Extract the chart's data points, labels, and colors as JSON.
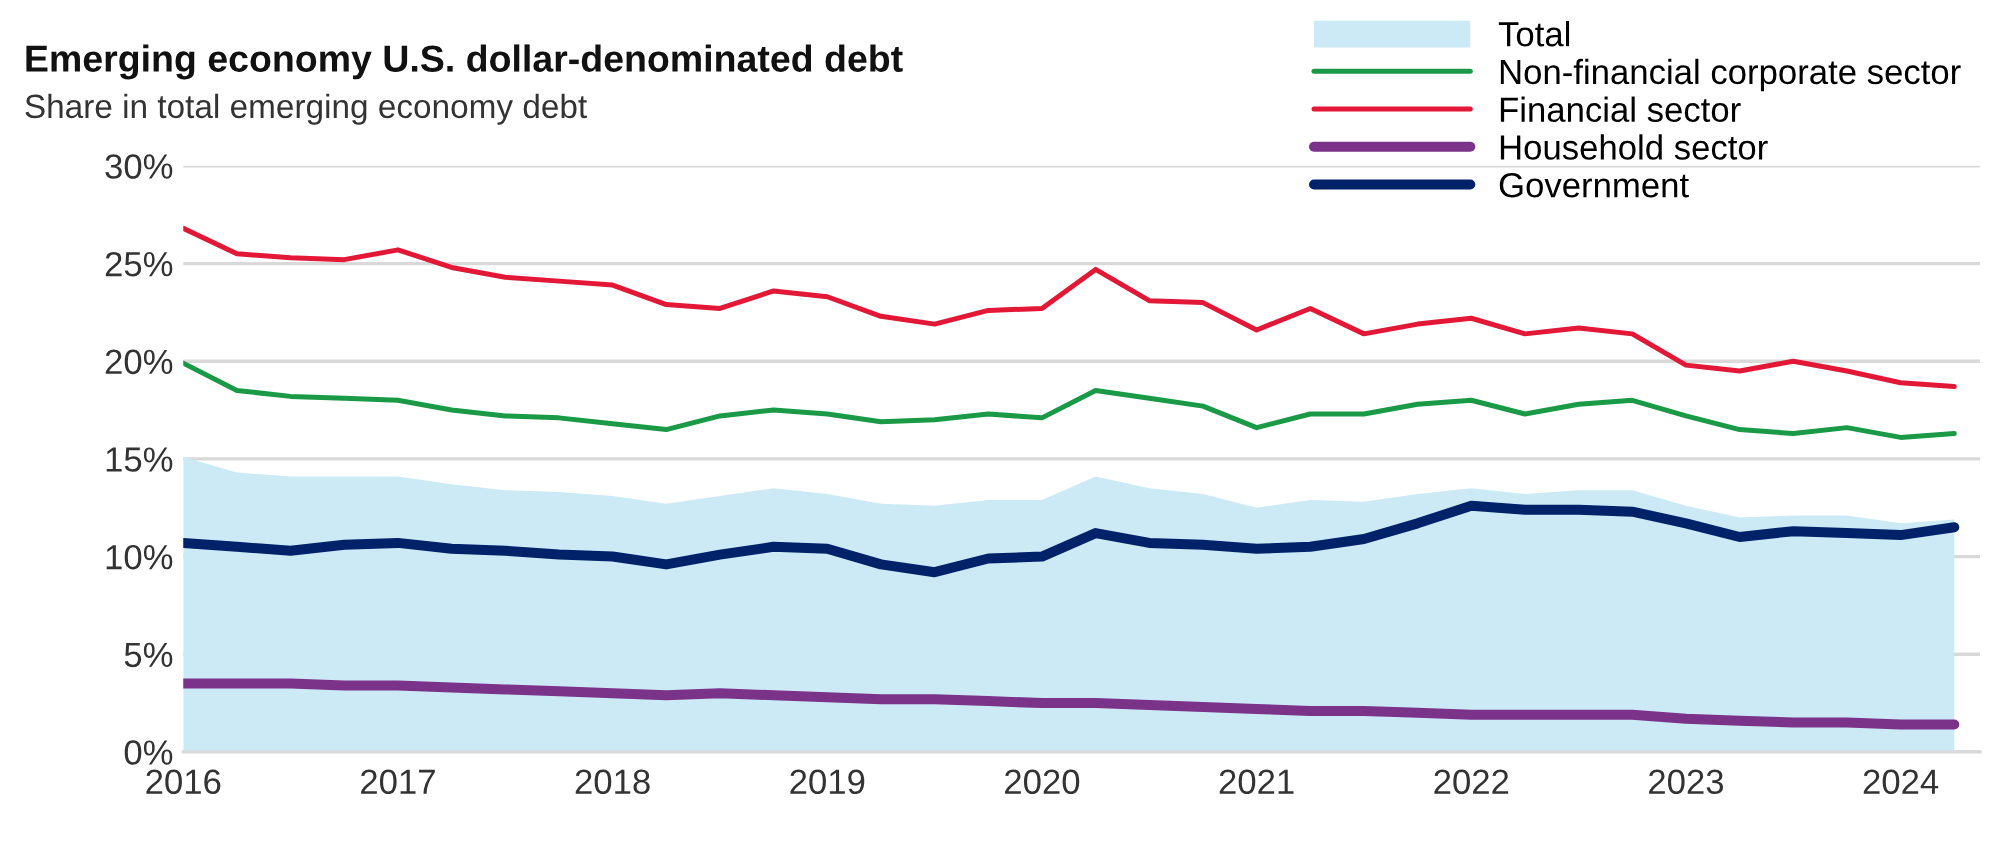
{
  "chart_data": {
    "type": "line",
    "title": "Emerging economy U.S. dollar-denominated debt",
    "subtitle": "Share in total emerging economy debt",
    "x": [
      2016,
      2016.25,
      2016.5,
      2016.75,
      2017,
      2017.25,
      2017.5,
      2017.75,
      2018,
      2018.25,
      2018.5,
      2018.75,
      2019,
      2019.25,
      2019.5,
      2019.75,
      2020,
      2020.25,
      2020.5,
      2020.75,
      2021,
      2021.25,
      2021.5,
      2021.75,
      2022,
      2022.25,
      2022.5,
      2022.75,
      2023,
      2023.25,
      2023.5,
      2023.75,
      2024,
      2024.25
    ],
    "series": [
      {
        "name": "Total",
        "type": "area",
        "color": "#cce9f6",
        "values": [
          15.1,
          14.3,
          14.1,
          14.1,
          14.1,
          13.7,
          13.4,
          13.3,
          13.1,
          12.7,
          13.1,
          13.5,
          13.2,
          12.7,
          12.6,
          12.9,
          12.9,
          14.1,
          13.5,
          13.2,
          12.5,
          12.9,
          12.8,
          13.2,
          13.5,
          13.2,
          13.4,
          13.4,
          12.6,
          12.0,
          12.1,
          12.1,
          11.7,
          11.9
        ]
      },
      {
        "name": "Non-financial corporate sector",
        "color": "#1a9a46",
        "values": [
          19.9,
          18.5,
          18.2,
          18.1,
          18.0,
          17.5,
          17.2,
          17.1,
          16.8,
          16.5,
          17.2,
          17.5,
          17.3,
          16.9,
          17.0,
          17.3,
          17.1,
          18.5,
          18.1,
          17.7,
          16.6,
          17.3,
          17.3,
          17.8,
          18.0,
          17.3,
          17.8,
          18.0,
          17.2,
          16.5,
          16.3,
          16.6,
          16.1,
          16.3
        ]
      },
      {
        "name": "Financial sector",
        "color": "#e31837",
        "values": [
          26.8,
          25.5,
          25.3,
          25.2,
          25.7,
          24.8,
          24.3,
          24.1,
          23.9,
          22.9,
          22.7,
          23.6,
          23.3,
          22.3,
          21.9,
          22.6,
          22.7,
          24.7,
          23.1,
          23.0,
          21.6,
          22.7,
          21.4,
          21.9,
          22.2,
          21.4,
          21.7,
          21.4,
          19.8,
          19.5,
          20.0,
          19.5,
          18.9,
          18.7
        ]
      },
      {
        "name": "Household sector",
        "color": "#7b3289",
        "values": [
          3.5,
          3.5,
          3.5,
          3.4,
          3.4,
          3.3,
          3.2,
          3.1,
          3.0,
          2.9,
          3.0,
          2.9,
          2.8,
          2.7,
          2.7,
          2.6,
          2.5,
          2.5,
          2.4,
          2.3,
          2.2,
          2.1,
          2.1,
          2.0,
          1.9,
          1.9,
          1.9,
          1.9,
          1.7,
          1.6,
          1.5,
          1.5,
          1.4,
          1.4
        ]
      },
      {
        "name": "Government",
        "color": "#012169",
        "values": [
          10.7,
          10.5,
          10.3,
          10.6,
          10.7,
          10.4,
          10.3,
          10.1,
          10.0,
          9.6,
          10.1,
          10.5,
          10.4,
          9.6,
          9.2,
          9.9,
          10.0,
          11.2,
          10.7,
          10.6,
          10.4,
          10.5,
          10.9,
          11.7,
          12.6,
          12.4,
          12.4,
          12.3,
          11.7,
          11.0,
          11.3,
          11.2,
          11.1,
          11.5
        ]
      }
    ],
    "xlim": [
      2016,
      2024.37
    ],
    "xticks": [
      2016,
      2017,
      2018,
      2019,
      2020,
      2021,
      2022,
      2023,
      2024
    ],
    "ylim": [
      0,
      30
    ],
    "yticks": [
      {
        "value": 0,
        "label": "0%"
      },
      {
        "value": 5,
        "label": "5%"
      },
      {
        "value": 10,
        "label": "10%"
      },
      {
        "value": 15,
        "label": "15%"
      },
      {
        "value": 20,
        "label": "20%"
      },
      {
        "value": 25,
        "label": "25%"
      },
      {
        "value": 30,
        "label": "30%"
      }
    ],
    "grid": "y",
    "legend": "top right",
    "marker": "none",
    "line_style": "solid"
  }
}
